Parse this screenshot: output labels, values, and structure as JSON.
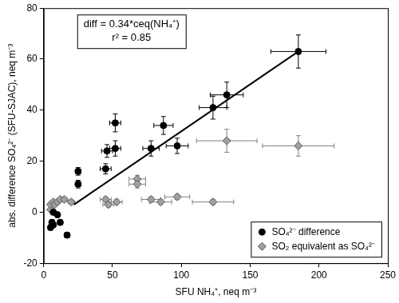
{
  "chart_data": {
    "type": "scatter",
    "xlabel": "SFU NH₄⁺, neq m⁻³",
    "ylabel": "abs. difference SO₄²⁻ (SFU-SJAC), neq m⁻³",
    "annotations": [
      "diff = 0.34*ceq(NH₄⁺)",
      "r² = 0.85"
    ],
    "xlim": [
      0,
      250
    ],
    "ylim": [
      -20,
      80
    ],
    "xticks": [
      0,
      50,
      100,
      150,
      200,
      250
    ],
    "yticks": [
      -20,
      0,
      20,
      40,
      60,
      80
    ],
    "grid": false,
    "legend": "lower right",
    "series": [
      {
        "name": "SO₄²⁻ difference",
        "color": "#000000",
        "marker": "circle",
        "x": [
          5,
          6,
          7,
          7,
          10,
          12,
          17,
          25,
          25,
          45,
          46,
          52,
          52,
          78,
          87,
          97,
          123,
          133,
          185
        ],
        "values": [
          -6,
          -4,
          -5,
          0,
          -1,
          -4,
          -9,
          11,
          16,
          17,
          24,
          25,
          35,
          25,
          34,
          26,
          41,
          46,
          63
        ],
        "x_err": [
          1,
          1,
          1,
          1,
          1,
          1,
          2,
          2,
          2,
          4,
          4,
          4,
          4,
          6,
          7,
          8,
          10,
          12,
          20
        ],
        "y_err": [
          1,
          1,
          1,
          1,
          1,
          1,
          1,
          1.5,
          1.5,
          2,
          2.5,
          3,
          3.5,
          3,
          3.5,
          3,
          4.5,
          5,
          6.5
        ]
      },
      {
        "name": "SO₂ equivalent as SO₄²⁻",
        "color": "#a0a0a0",
        "marker": "diamond",
        "x": [
          5,
          5,
          7,
          8,
          10,
          12,
          15,
          20,
          45,
          47,
          53,
          68,
          68,
          78,
          85,
          97,
          123,
          133,
          185
        ],
        "values": [
          1,
          3,
          4,
          3,
          4,
          5,
          5,
          4,
          5,
          3,
          4,
          13,
          11,
          5,
          4,
          6,
          4,
          28,
          26
        ],
        "x_err": [
          1,
          1,
          1,
          1,
          1,
          1,
          2,
          2,
          4,
          4,
          4,
          6,
          6,
          7,
          8,
          9,
          15,
          22,
          26
        ],
        "y_err": [
          0.5,
          0.5,
          0.5,
          0.5,
          0.5,
          0.5,
          0.5,
          0.5,
          1,
          1,
          1,
          1.5,
          1.5,
          1,
          1,
          1,
          1,
          4.5,
          4
        ]
      },
      {
        "type": "line",
        "color": "#000000",
        "line_style": "solid",
        "x": [
          22,
          185
        ],
        "values": [
          3,
          63
        ]
      }
    ]
  }
}
